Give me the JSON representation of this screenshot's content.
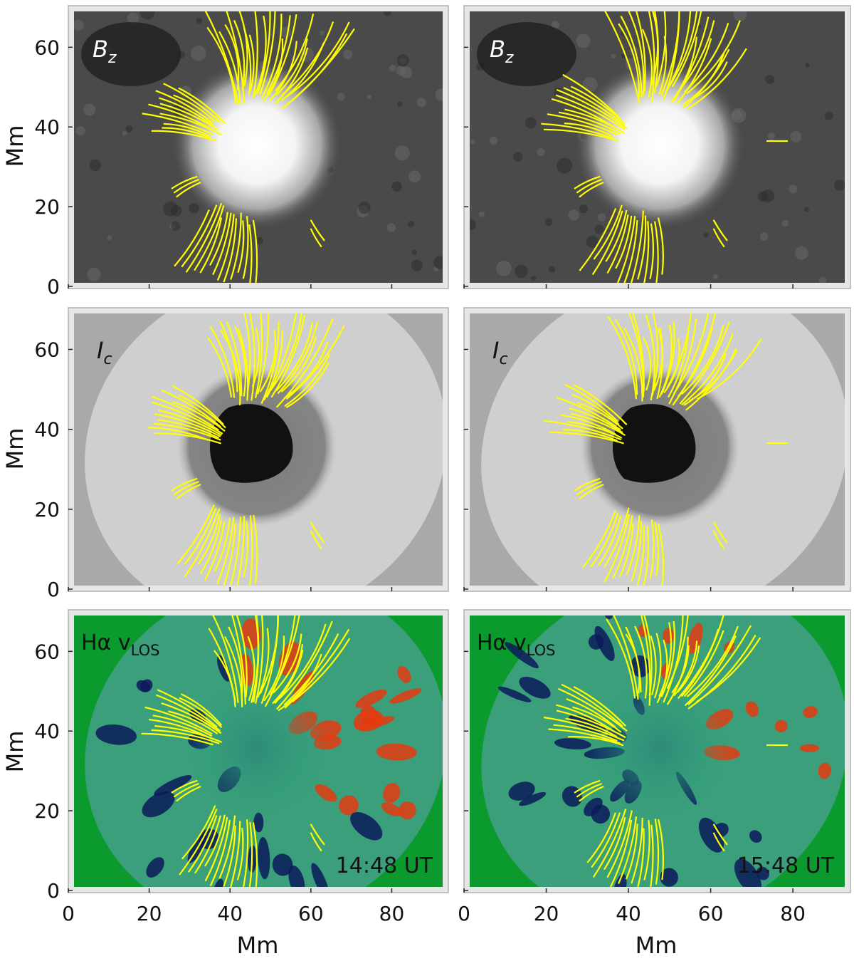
{
  "figure": {
    "columns": [
      {
        "time_label": "14:48 UT"
      },
      {
        "time_label": "15:48 UT"
      }
    ],
    "rows": [
      {
        "label_main": "B",
        "label_sub": "z",
        "style": "magnetogram"
      },
      {
        "label_main": "I",
        "label_sub": "c",
        "style": "continuum"
      },
      {
        "label_main": "Hα v",
        "label_sub": "LOS",
        "style": "velocity"
      }
    ],
    "y_axis": {
      "title": "Mm",
      "ticks": [
        "0",
        "20",
        "40",
        "60"
      ]
    },
    "x_axis": {
      "title": "Mm",
      "ticks": [
        "0",
        "20",
        "40",
        "60",
        "80"
      ]
    },
    "colors": {
      "fieldline": "#ffff00",
      "velocity_background": "#0a9a2e",
      "continuum_background": "#a9a9a9",
      "magnetogram_background": "#4a4a4a",
      "redshift": "#e53a10",
      "blueshift": "#0a1a5a"
    }
  }
}
